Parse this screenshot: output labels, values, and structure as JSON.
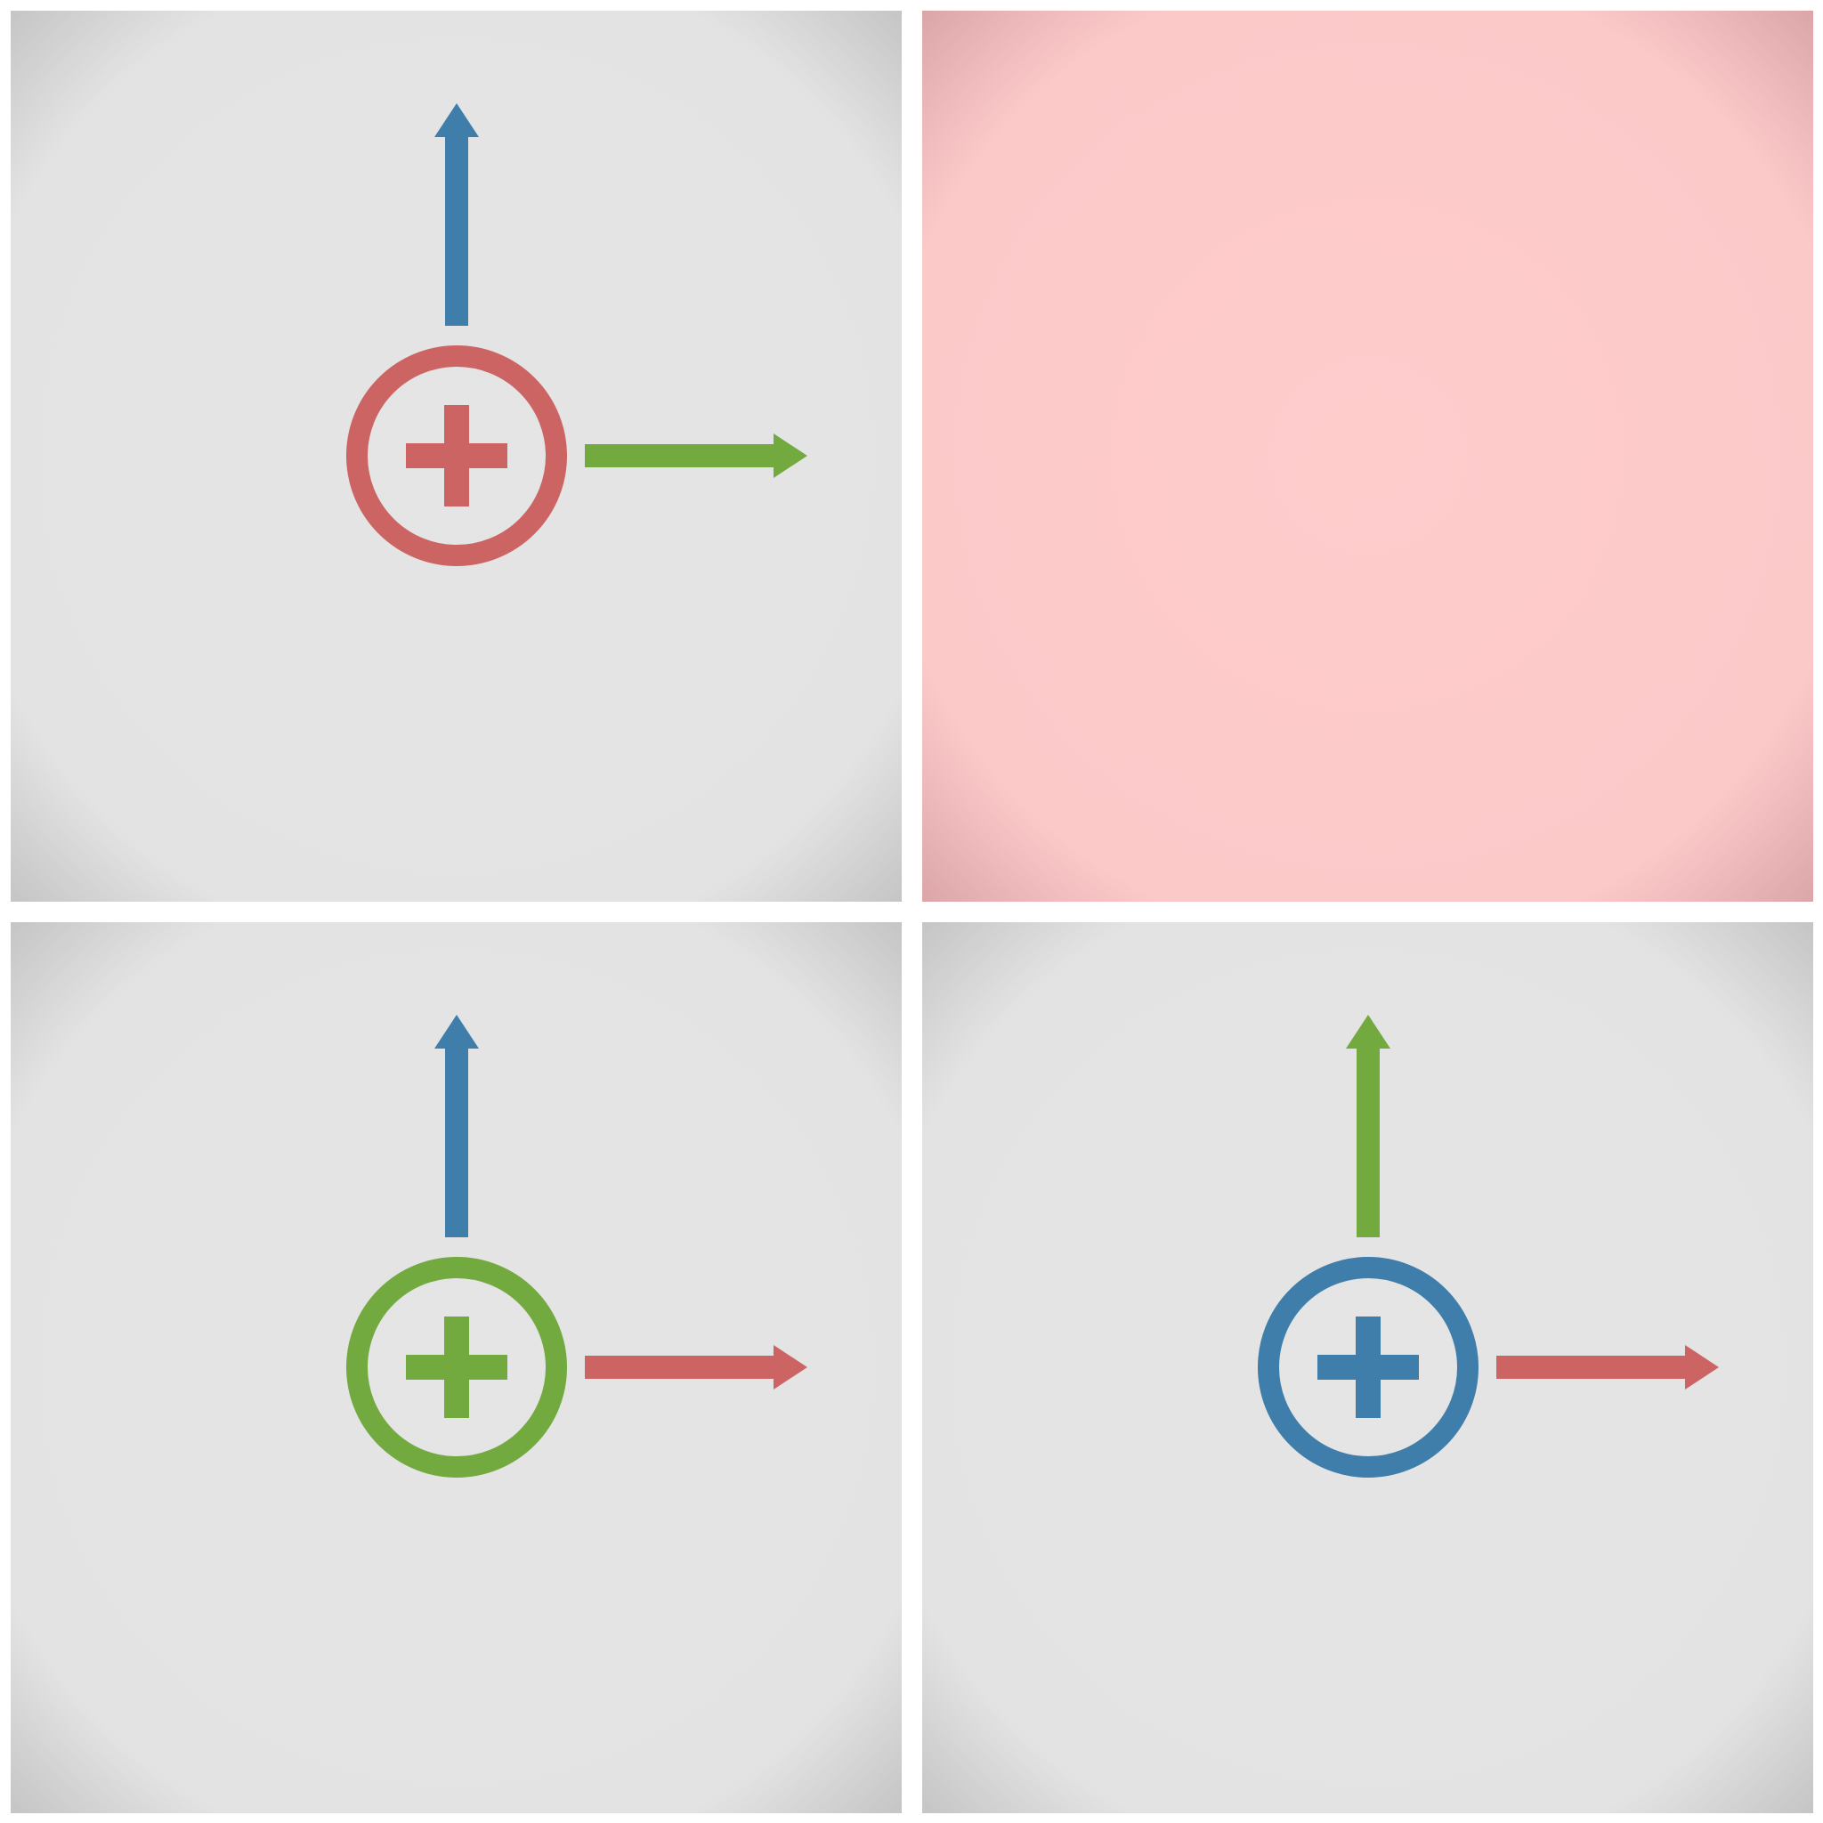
{
  "colors": {
    "red": "#cd6464",
    "green": "#72aa40",
    "blue": "#3f7eaa",
    "panel_gray": "#e5e5e5",
    "panel_gray_edge": "#c2c2c2",
    "panel_pink": "#ffcccc",
    "panel_pink_edge": "#d9a3a6",
    "background": "#ffffff"
  },
  "panels": [
    {
      "id": "top-left",
      "background": "gray",
      "empty": false,
      "up_arrow_color": "blue",
      "right_arrow_color": "green",
      "origin_color": "red",
      "origin_symbol": "plus-in-circle"
    },
    {
      "id": "top-right",
      "background": "pink",
      "empty": true
    },
    {
      "id": "bottom-left",
      "background": "gray",
      "empty": false,
      "up_arrow_color": "blue",
      "right_arrow_color": "red",
      "origin_color": "green",
      "origin_symbol": "plus-in-circle"
    },
    {
      "id": "bottom-right",
      "background": "gray",
      "empty": false,
      "up_arrow_color": "green",
      "right_arrow_color": "red",
      "origin_color": "blue",
      "origin_symbol": "plus-in-circle"
    }
  ]
}
